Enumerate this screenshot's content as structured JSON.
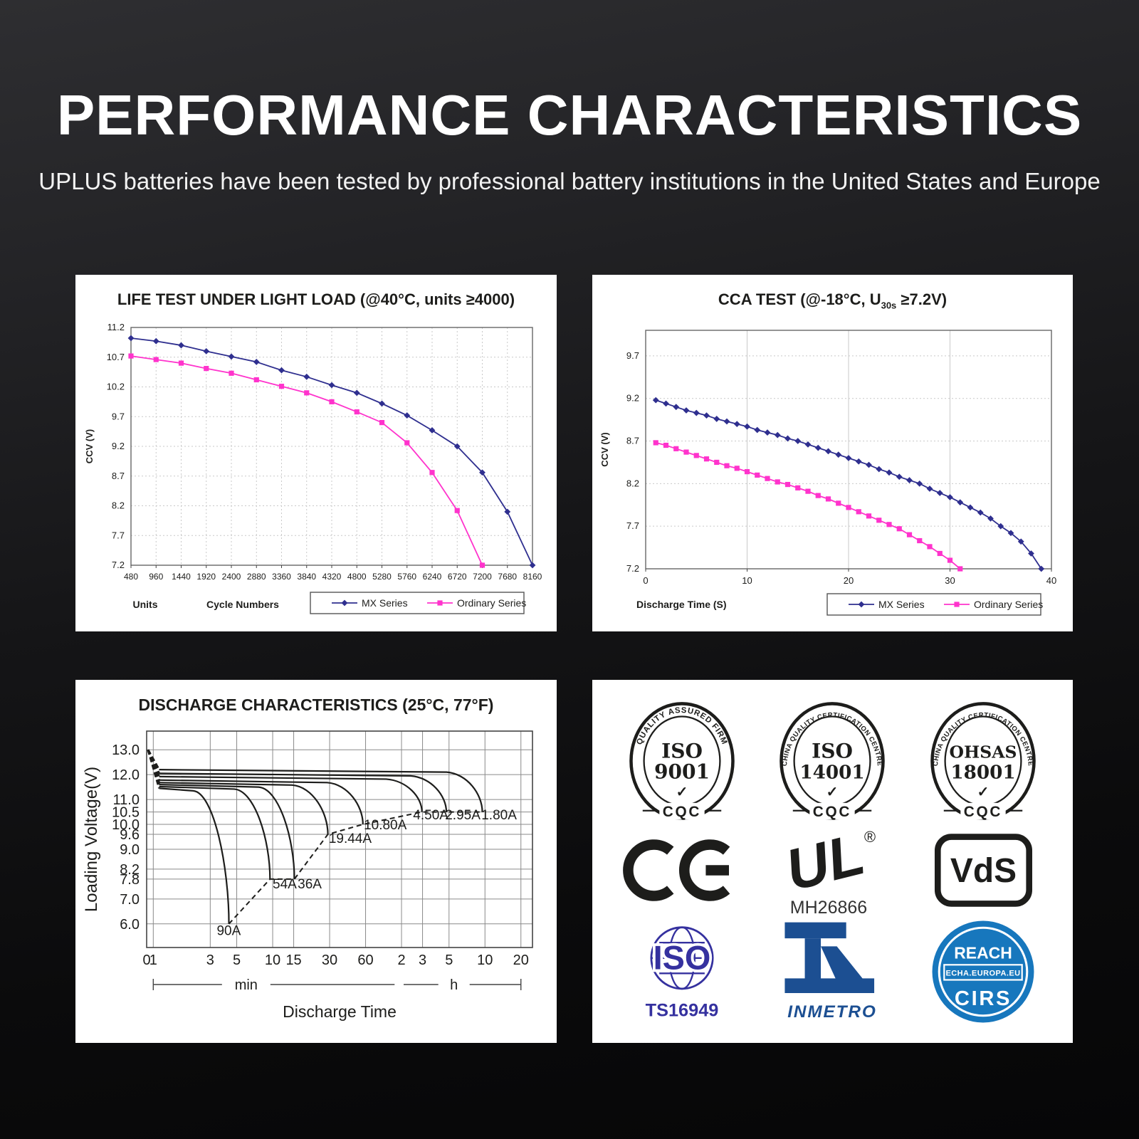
{
  "header": {
    "title": "PERFORMANCE CHARACTERISTICS",
    "subtitle": "UPLUS batteries have been tested by professional battery institutions in the United States and Europe"
  },
  "colors": {
    "mx_series": "#2f2f8f",
    "ordinary_series": "#ff33cc",
    "chart_ink": "#1d1d1b",
    "grid_light": "#c9c9c9",
    "grid_dark": "#8a8a8a",
    "plot_border": "#666666",
    "ts16949_blue": "#35319f",
    "inmetro_blue": "#1c4f92",
    "reach_blue": "#1777bd"
  },
  "chart_data": [
    {
      "id": "life-test",
      "type": "line",
      "title": "LIFE TEST UNDER LIGHT LOAD (@40°C, units ≥4000)",
      "ylabel": "CCV (V)",
      "xlabel_left": "Units",
      "xlabel": "Cycle Numbers",
      "x": [
        480,
        960,
        1440,
        1920,
        2400,
        2880,
        3360,
        3840,
        4320,
        4800,
        5280,
        5760,
        6240,
        6720,
        7200,
        7680,
        8160
      ],
      "ylim": [
        7.2,
        11.2
      ],
      "yticks": [
        "11.2",
        "10.7",
        "10.2",
        "9.7",
        "9.2",
        "8.7",
        "8.2",
        "7.7",
        "7.2"
      ],
      "legend_position": "bottom-right",
      "grid": true,
      "series": [
        {
          "name": "MX Series",
          "marker": "diamond",
          "values": [
            11.02,
            10.97,
            10.9,
            10.8,
            10.71,
            10.62,
            10.48,
            10.37,
            10.23,
            10.1,
            9.92,
            9.72,
            9.47,
            9.2,
            8.76,
            8.1,
            7.2
          ]
        },
        {
          "name": "Ordinary Series",
          "marker": "square",
          "values": [
            10.72,
            10.66,
            10.6,
            10.51,
            10.43,
            10.32,
            10.21,
            10.1,
            9.95,
            9.78,
            9.6,
            9.26,
            8.76,
            8.12,
            7.2
          ]
        }
      ]
    },
    {
      "id": "cca-test",
      "type": "line",
      "title_prefix": "CCA TEST (@-18°C, U",
      "title_sub": "30s",
      "title_suffix": " ≥7.2V)",
      "ylabel": "CCV (V)",
      "xlabel": "Discharge Time (S)",
      "xlim": [
        0,
        40
      ],
      "xticks": [
        0,
        10,
        20,
        30,
        40
      ],
      "ylim": [
        7.2,
        10.0
      ],
      "yticks": [
        "9.7",
        "9.2",
        "8.7",
        "8.2",
        "7.7",
        "7.2"
      ],
      "legend_position": "bottom-right",
      "grid": true,
      "series": [
        {
          "name": "MX Series",
          "marker": "diamond",
          "x_start": 1,
          "x_step": 1,
          "values": [
            9.18,
            9.14,
            9.1,
            9.06,
            9.03,
            9.0,
            8.96,
            8.93,
            8.9,
            8.87,
            8.83,
            8.8,
            8.77,
            8.73,
            8.7,
            8.66,
            8.62,
            8.58,
            8.54,
            8.5,
            8.46,
            8.42,
            8.37,
            8.33,
            8.28,
            8.24,
            8.2,
            8.14,
            8.09,
            8.04,
            7.98,
            7.92,
            7.86,
            7.79,
            7.7,
            7.62,
            7.52,
            7.38,
            7.2
          ]
        },
        {
          "name": "Ordinary Series",
          "marker": "square",
          "x_start": 1,
          "x_step": 1,
          "values": [
            8.68,
            8.65,
            8.61,
            8.57,
            8.53,
            8.49,
            8.45,
            8.41,
            8.38,
            8.34,
            8.3,
            8.26,
            8.22,
            8.19,
            8.15,
            8.11,
            8.06,
            8.02,
            7.97,
            7.92,
            7.87,
            7.82,
            7.77,
            7.72,
            7.67,
            7.6,
            7.53,
            7.46,
            7.38,
            7.3,
            7.2
          ]
        }
      ]
    },
    {
      "id": "discharge-characteristics",
      "type": "line",
      "x_scale": "log-minutes",
      "title": "DISCHARGE CHARACTERISTICS (25°C, 77°F)",
      "ylabel": "Loading Voltage(V)",
      "xlabel": "Discharge Time",
      "ylim": [
        5.05,
        13.75
      ],
      "yticks": [
        "13.0",
        "12.0",
        "11.0",
        "10.5",
        "10.0",
        "9.6",
        "9.0",
        "8.2",
        "7.8",
        "7.0",
        "6.0"
      ],
      "zero_label": "0",
      "minute_ticks": [
        1,
        3,
        5,
        10,
        15,
        30,
        60
      ],
      "hour_ticks": [
        2,
        3,
        5,
        10,
        20
      ],
      "unit_labels": {
        "min": "min",
        "h": "h"
      },
      "start_point": {
        "t_min": 0.88,
        "v": 13.0
      },
      "curves": [
        {
          "label": "90A",
          "plateau": 11.45,
          "end_min": 4.3,
          "end_v": 6.0,
          "label_at": [
            3.4,
            5.55
          ]
        },
        {
          "label": "54A",
          "plateau": 11.52,
          "end_min": 9.5,
          "end_v": 7.8,
          "label_at": [
            10.0,
            7.42
          ]
        },
        {
          "label": "36A",
          "plateau": 11.6,
          "end_min": 15.2,
          "end_v": 7.8,
          "label_at": [
            16.2,
            7.42
          ]
        },
        {
          "label": "19.44A",
          "plateau": 11.68,
          "end_min": 29,
          "end_v": 9.6,
          "label_at": [
            29.5,
            9.26
          ]
        },
        {
          "label": "10.80A",
          "plateau": 11.78,
          "end_min": 57,
          "end_v": 10.0,
          "label_at": [
            58,
            9.8
          ]
        },
        {
          "label": "4.50A",
          "plateau": 11.92,
          "end_min": 178,
          "end_v": 10.5,
          "label_at": [
            150,
            10.2
          ]
        },
        {
          "label": "2.95A",
          "plateau": 12.05,
          "end_min": 285,
          "end_v": 10.5,
          "label_at": [
            278,
            10.2
          ]
        },
        {
          "label": "1.80A",
          "plateau": 12.2,
          "end_min": 570,
          "end_v": 10.5,
          "label_at": [
            560,
            10.2
          ]
        }
      ],
      "dashed_connector": [
        [
          4.3,
          6.0
        ],
        [
          9.5,
          7.8
        ],
        [
          15.2,
          7.8
        ],
        [
          29,
          9.6
        ],
        [
          57,
          10.0
        ],
        [
          178,
          10.5
        ],
        [
          285,
          10.5
        ],
        [
          570,
          10.5
        ]
      ]
    }
  ],
  "certs": {
    "seals": [
      {
        "ring": "QUALITY ASSURED FIRM",
        "line1": "ISO",
        "line2": "9001",
        "check": "✓",
        "bottom": "CQC"
      },
      {
        "ring": "CHINA QUALITY CERTIFICATION CENTRE",
        "line1": "ISO",
        "line2": "14001",
        "check": "✓",
        "bottom": "CQC"
      },
      {
        "ring": "CHINA QUALITY CERTIFICATION CENTRE",
        "line1": "OHSAS",
        "line2": "18001",
        "check": "✓",
        "bottom": "CQC"
      }
    ],
    "ce": {
      "label": "CE"
    },
    "ul": {
      "letters": "UL",
      "reg": "®",
      "code": "MH26866"
    },
    "vds": {
      "label": "VdS"
    },
    "ts16949": {
      "line1": "ISO",
      "line2": "TS16949"
    },
    "inmetro": {
      "label": "INMETRO"
    },
    "reach": {
      "top": "REACH",
      "band": "ECHA.EUROPA.EU",
      "bottom": "CIRS"
    }
  }
}
